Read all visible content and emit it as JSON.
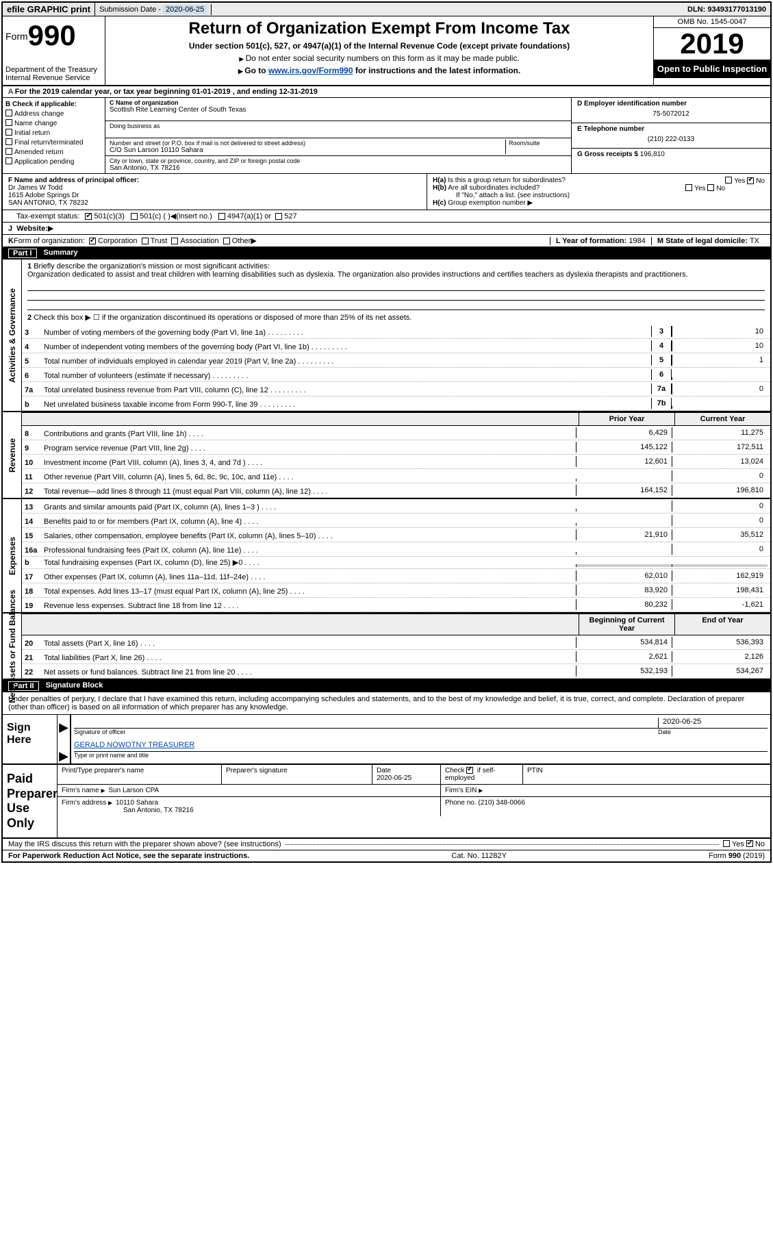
{
  "top": {
    "efile": "efile GRAPHIC print",
    "subdate_lbl": "Submission Date - ",
    "subdate": "2020-06-25",
    "dln_lbl": "DLN: ",
    "dln": "93493177013190"
  },
  "head": {
    "form": "Form",
    "num": "990",
    "dept1": "Department of the Treasury",
    "dept2": "Internal Revenue Service",
    "title": "Return of Organization Exempt From Income Tax",
    "sub1": "Under section 501(c), 527, or 4947(a)(1) of the Internal Revenue Code (except private foundations)",
    "sub2": "Do not enter social security numbers on this form as it may be made public.",
    "sub3a": "Go to ",
    "sub3link": "www.irs.gov/Form990",
    "sub3b": " for instructions and the latest information.",
    "omb": "OMB No. 1545-0047",
    "year": "2019",
    "open": "Open to Public Inspection"
  },
  "rowA": "For the 2019 calendar year, or tax year beginning 01-01-2019     , and ending 12-31-2019",
  "B": {
    "lbl": "Check if applicable:",
    "opts": [
      "Address change",
      "Name change",
      "Initial return",
      "Final return/terminated",
      "Amended return",
      "Application pending"
    ]
  },
  "C": {
    "name_lbl": "C Name of organization",
    "name": "Scottish Rite Learning Center of South Texas",
    "dba_lbl": "Doing business as",
    "addr_lbl": "Number and street (or P.O. box if mail is not delivered to street address)",
    "room_lbl": "Room/suite",
    "addr": "C/O Sun Larson 10110 Sahara",
    "city_lbl": "City or town, state or province, country, and ZIP or foreign postal code",
    "city": "San Antonio, TX   78216"
  },
  "D": {
    "lbl": "D Employer identification number",
    "val": "75-5072012"
  },
  "E": {
    "lbl": "E Telephone number",
    "val": "(210) 222-0133"
  },
  "G": {
    "lbl": "G Gross receipts $ ",
    "val": "196,810"
  },
  "F": {
    "lbl": "F  Name and address of principal officer:",
    "l1": "Dr James W Todd",
    "l2": "1615 Adobe Springs Dr",
    "l3": "SAN ANTONIO, TX   78232"
  },
  "H": {
    "a": "Is this a group return for subordinates?",
    "b": "Are all subordinates included?",
    "bnote": "If \"No,\" attach a list. (see instructions)",
    "c": "Group exemption number"
  },
  "I": {
    "lbl": "Tax-exempt status:",
    "o1": "501(c)(3)",
    "o2": "501(c) (   )",
    "o2b": "(insert no.)",
    "o3": "4947(a)(1) or",
    "o4": "527"
  },
  "J": {
    "lbl": "Website:",
    "val": ""
  },
  "K": {
    "lbl": "Form of organization:",
    "opts": [
      "Corporation",
      "Trust",
      "Association",
      "Other"
    ]
  },
  "L": {
    "lbl": "L Year of formation: ",
    "val": "1984"
  },
  "M": {
    "lbl": "M State of legal domicile: ",
    "val": "TX"
  },
  "part1": {
    "title": "Part I",
    "name": "Summary",
    "l1a": "Briefly describe the organization's mission or most significant activities:",
    "l1b": "Organization dedicated to assist and treat children with learning disabilities such as dyslexia. The organization also provides instructions and certifies teachers as dyslexia therapists and practitioners.",
    "l2": "Check this box ▶ ☐  if the organization discontinued its operations or disposed of more than 25% of its net assets.",
    "rows_gov": [
      {
        "no": "3",
        "desc": "Number of voting members of the governing body (Part VI, line 1a)",
        "box": "3",
        "val": "10"
      },
      {
        "no": "4",
        "desc": "Number of independent voting members of the governing body (Part VI, line 1b)",
        "box": "4",
        "val": "10"
      },
      {
        "no": "5",
        "desc": "Total number of individuals employed in calendar year 2019 (Part V, line 2a)",
        "box": "5",
        "val": "1"
      },
      {
        "no": "6",
        "desc": "Total number of volunteers (estimate if necessary)",
        "box": "6",
        "val": ""
      },
      {
        "no": "7a",
        "desc": "Total unrelated business revenue from Part VIII, column (C), line 12",
        "box": "7a",
        "val": "0"
      },
      {
        "no": "b",
        "desc": "Net unrelated business taxable income from Form 990-T, line 39",
        "box": "7b",
        "val": ""
      }
    ],
    "hdr_prior": "Prior Year",
    "hdr_curr": "Current Year",
    "rows_rev": [
      {
        "no": "8",
        "desc": "Contributions and grants (Part VIII, line 1h)",
        "prior": "6,429",
        "curr": "11,275"
      },
      {
        "no": "9",
        "desc": "Program service revenue (Part VIII, line 2g)",
        "prior": "145,122",
        "curr": "172,511"
      },
      {
        "no": "10",
        "desc": "Investment income (Part VIII, column (A), lines 3, 4, and 7d )",
        "prior": "12,601",
        "curr": "13,024"
      },
      {
        "no": "11",
        "desc": "Other revenue (Part VIII, column (A), lines 5, 6d, 8c, 9c, 10c, and 11e)",
        "prior": "",
        "curr": "0"
      },
      {
        "no": "12",
        "desc": "Total revenue—add lines 8 through 11 (must equal Part VIII, column (A), line 12)",
        "prior": "164,152",
        "curr": "196,810"
      }
    ],
    "rows_exp": [
      {
        "no": "13",
        "desc": "Grants and similar amounts paid (Part IX, column (A), lines 1–3 )",
        "prior": "",
        "curr": "0"
      },
      {
        "no": "14",
        "desc": "Benefits paid to or for members (Part IX, column (A), line 4)",
        "prior": "",
        "curr": "0"
      },
      {
        "no": "15",
        "desc": "Salaries, other compensation, employee benefits (Part IX, column (A), lines 5–10)",
        "prior": "21,910",
        "curr": "35,512"
      },
      {
        "no": "16a",
        "desc": "Professional fundraising fees (Part IX, column (A), line 11e)",
        "prior": "",
        "curr": "0"
      },
      {
        "no": "b",
        "desc": "Total fundraising expenses (Part IX, column (D), line 25) ▶0",
        "prior": "__grey__",
        "curr": "__grey__"
      },
      {
        "no": "17",
        "desc": "Other expenses (Part IX, column (A), lines 11a–11d, 11f–24e)",
        "prior": "62,010",
        "curr": "162,919"
      },
      {
        "no": "18",
        "desc": "Total expenses. Add lines 13–17 (must equal Part IX, column (A), line 25)",
        "prior": "83,920",
        "curr": "198,431"
      },
      {
        "no": "19",
        "desc": "Revenue less expenses. Subtract line 18 from line 12",
        "prior": "80,232",
        "curr": "-1,621"
      }
    ],
    "hdr_beg": "Beginning of Current Year",
    "hdr_end": "End of Year",
    "rows_net": [
      {
        "no": "20",
        "desc": "Total assets (Part X, line 16)",
        "prior": "534,814",
        "curr": "536,393"
      },
      {
        "no": "21",
        "desc": "Total liabilities (Part X, line 26)",
        "prior": "2,621",
        "curr": "2,126"
      },
      {
        "no": "22",
        "desc": "Net assets or fund balances. Subtract line 21 from line 20",
        "prior": "532,193",
        "curr": "534,267"
      }
    ],
    "sides": {
      "gov": "Activities & Governance",
      "rev": "Revenue",
      "exp": "Expenses",
      "net": "Net Assets or Fund Balances"
    }
  },
  "part2": {
    "title": "Part II",
    "name": "Signature Block",
    "decl": "Under penalties of perjury, I declare that I have examined this return, including accompanying schedules and statements, and to the best of my knowledge and belief, it is true, correct, and complete. Declaration of preparer (other than officer) is based on all information of which preparer has any knowledge."
  },
  "sign": {
    "here": "Sign Here",
    "sig_lbl": "Signature of officer",
    "date": "2020-06-25",
    "date_lbl": "Date",
    "name": "GERALD NOWOTNY TREASURER",
    "name_lbl": "Type or print name and title"
  },
  "prep": {
    "lbl": "Paid Preparer Use Only",
    "h1": "Print/Type preparer's name",
    "h2": "Preparer's signature",
    "h3": "Date",
    "h3v": "2020-06-25",
    "h4a": "Check",
    "h4b": "if self-employed",
    "h5": "PTIN",
    "firm_lbl": "Firm's name",
    "firm": "Sun Larson CPA",
    "ein_lbl": "Firm's EIN",
    "addr_lbl": "Firm's address",
    "addr1": "10110 Sahara",
    "addr2": "San Antonio, TX   78216",
    "phone_lbl": "Phone no.",
    "phone": "(210) 348-0066"
  },
  "discuss": "May the IRS discuss this return with the preparer shown above? (see instructions)",
  "foot": {
    "l": "For Paperwork Reduction Act Notice, see the separate instructions.",
    "m": "Cat. No. 11282Y",
    "r": "Form 990 (2019)"
  }
}
